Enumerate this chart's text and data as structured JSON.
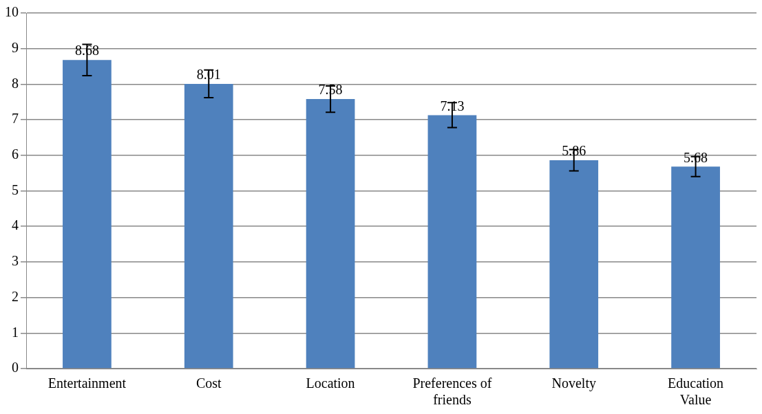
{
  "chart_data": {
    "type": "bar",
    "categories": [
      "Entertainment",
      "Cost",
      "Location",
      "Preferences of friends",
      "Novelty",
      "Education Value"
    ],
    "values": [
      8.68,
      8.01,
      7.58,
      7.13,
      5.86,
      5.68
    ],
    "errors": [
      0.44,
      0.39,
      0.37,
      0.35,
      0.3,
      0.28
    ],
    "color": "#4f81bd",
    "ylim": [
      0,
      10
    ],
    "yticks": [
      0,
      1,
      2,
      3,
      4,
      5,
      6,
      7,
      8,
      9,
      10
    ],
    "grid": "y",
    "data_labels": true,
    "legend": false
  }
}
